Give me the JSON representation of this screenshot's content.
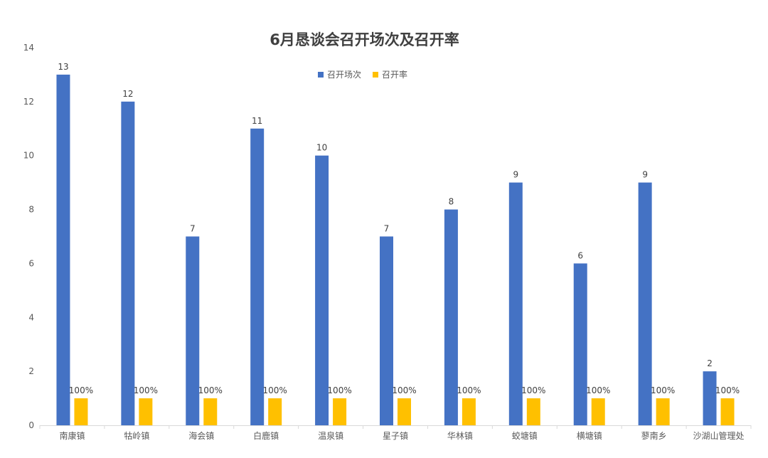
{
  "chart_data": {
    "type": "bar",
    "title": "6月恳谈会召开场次及召开率",
    "categories": [
      "南康镇",
      "牯岭镇",
      "海会镇",
      "白鹿镇",
      "温泉镇",
      "星子镇",
      "华林镇",
      "蛟塘镇",
      "横塘镇",
      "蓼南乡",
      "沙湖山管理处"
    ],
    "series": [
      {
        "name": "召开场次",
        "color": "#4472C4",
        "values": [
          13,
          12,
          7,
          11,
          10,
          7,
          8,
          9,
          6,
          9,
          2
        ],
        "labels": [
          "13",
          "12",
          "7",
          "11",
          "10",
          "7",
          "8",
          "9",
          "6",
          "9",
          "2"
        ]
      },
      {
        "name": "召开率",
        "color": "#FFC000",
        "values": [
          1,
          1,
          1,
          1,
          1,
          1,
          1,
          1,
          1,
          1,
          1
        ],
        "labels": [
          "100%",
          "100%",
          "100%",
          "100%",
          "100%",
          "100%",
          "100%",
          "100%",
          "100%",
          "100%",
          "100%"
        ]
      }
    ],
    "ylim": [
      0,
      14
    ],
    "yticks": [
      0,
      2,
      4,
      6,
      8,
      10,
      12,
      14
    ],
    "xlabel": "",
    "ylabel": "",
    "grid": false,
    "legend_position": "top"
  }
}
